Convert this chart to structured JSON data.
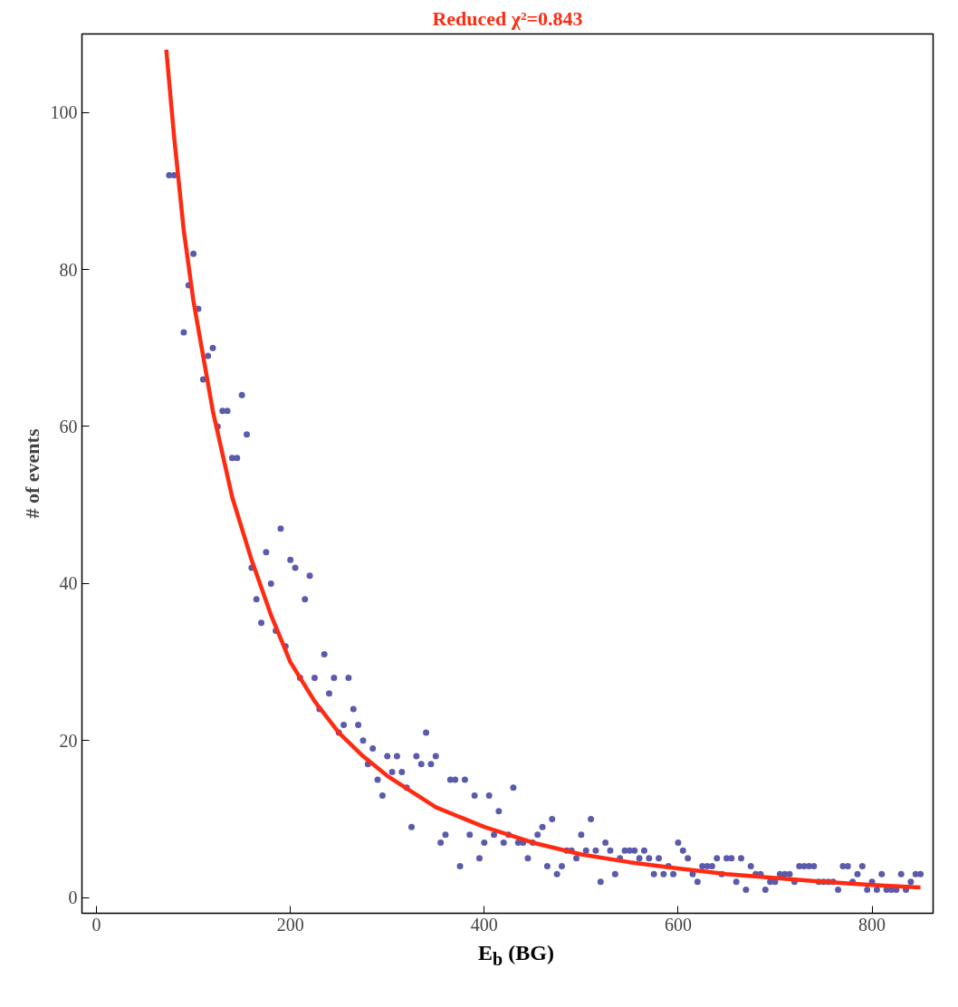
{
  "chart_data": {
    "type": "scatter",
    "title": "Reduced χ²=0.843",
    "xlabel": "E$_{b}$ (BG)",
    "ylabel": "# of events",
    "xlim": [
      -15,
      863
    ],
    "ylim": [
      -2,
      110
    ],
    "xticks": [
      0,
      200,
      400,
      600,
      800
    ],
    "yticks": [
      0,
      20,
      40,
      60,
      80,
      100
    ],
    "grid": false,
    "series": [
      {
        "color": "#5b5bab",
        "marker": "circle",
        "x": [
          75,
          80,
          90,
          95,
          100,
          105,
          110,
          115,
          120,
          125,
          130,
          135,
          140,
          145,
          150,
          155,
          160,
          165,
          170,
          175,
          180,
          185,
          190,
          195,
          200,
          205,
          210,
          215,
          220,
          225,
          230,
          235,
          240,
          245,
          250,
          255,
          260,
          265,
          270,
          275,
          280,
          285,
          290,
          295,
          300,
          305,
          310,
          315,
          320,
          325,
          330,
          335,
          340,
          345,
          350,
          355,
          360,
          365,
          370,
          375,
          380,
          385,
          390,
          395,
          400,
          405,
          410,
          415,
          420,
          425,
          430,
          435,
          440,
          445,
          450,
          455,
          460,
          465,
          470,
          475,
          480,
          485,
          490,
          495,
          500,
          505,
          510,
          515,
          520,
          525,
          530,
          535,
          540,
          545,
          550,
          555,
          560,
          565,
          570,
          575,
          580,
          585,
          590,
          595,
          600,
          605,
          610,
          615,
          620,
          625,
          630,
          635,
          640,
          645,
          650,
          655,
          660,
          665,
          670,
          675,
          680,
          685,
          690,
          695,
          700,
          705,
          710,
          715,
          720,
          725,
          730,
          735,
          740,
          745,
          750,
          755,
          760,
          765,
          770,
          775,
          780,
          785,
          790,
          795,
          800,
          805,
          810,
          815,
          820,
          825,
          830,
          835,
          840,
          845,
          850
        ],
        "values": [
          92,
          92,
          72,
          78,
          82,
          75,
          66,
          69,
          70,
          60,
          62,
          62,
          56,
          56,
          64,
          59,
          42,
          38,
          35,
          44,
          40,
          34,
          47,
          32,
          43,
          42,
          28,
          38,
          41,
          28,
          24,
          31,
          26,
          28,
          21,
          22,
          28,
          24,
          22,
          20,
          17,
          19,
          15,
          13,
          18,
          16,
          18,
          16,
          14,
          9,
          18,
          17,
          21,
          17,
          18,
          7,
          8,
          15,
          15,
          4,
          15,
          8,
          13,
          5,
          7,
          13,
          8,
          11,
          7,
          8,
          14,
          7,
          7,
          5,
          7,
          8,
          9,
          4,
          10,
          3,
          4,
          6,
          6,
          5,
          8,
          6,
          10,
          6,
          2,
          7,
          6,
          3,
          5,
          6,
          6,
          6,
          5,
          6,
          5,
          3,
          5,
          3,
          4,
          3,
          7,
          6,
          5,
          3,
          2,
          4,
          4,
          4,
          5,
          3,
          5,
          5,
          2,
          5,
          1,
          4,
          3,
          3,
          1,
          2,
          2,
          3,
          3,
          3,
          2,
          4,
          4,
          4,
          4,
          2,
          2,
          2,
          2,
          1,
          4,
          4,
          2,
          3,
          4,
          1,
          2,
          1,
          3,
          1,
          1,
          1,
          3,
          1,
          2,
          3,
          3
        ]
      },
      {
        "type": "line",
        "color": "#ff2a12",
        "marker": "none",
        "x": [
          72,
          80,
          90,
          100,
          120,
          140,
          160,
          180,
          200,
          225,
          250,
          275,
          300,
          350,
          400,
          450,
          500,
          550,
          600,
          650,
          700,
          750,
          800,
          850
        ],
        "values": [
          108,
          97,
          85,
          76,
          62,
          51,
          43,
          36,
          30,
          25,
          21,
          18,
          15.5,
          11.5,
          9,
          7,
          5.5,
          4.5,
          3.7,
          3,
          2.5,
          2,
          1.6,
          1.3
        ]
      }
    ]
  }
}
